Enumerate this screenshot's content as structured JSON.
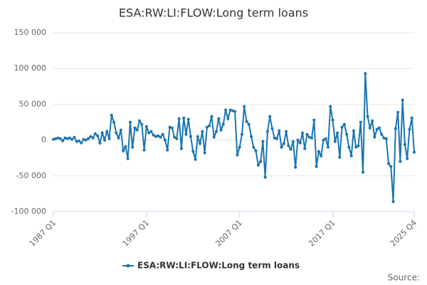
{
  "chart_data": {
    "type": "line",
    "title": "ESA:RW:LI:FLOW:Long term loans",
    "source": "Source:",
    "categories": [
      "1987 Q1",
      null,
      null,
      null,
      null,
      null,
      null,
      null,
      null,
      null,
      null,
      null,
      null,
      null,
      null,
      null,
      null,
      null,
      null,
      null,
      null,
      null,
      null,
      null,
      null,
      null,
      null,
      null,
      null,
      null,
      null,
      null,
      null,
      null,
      null,
      null,
      null,
      null,
      null,
      null,
      "1997 Q1",
      null,
      null,
      null,
      null,
      null,
      null,
      null,
      null,
      null,
      null,
      null,
      null,
      null,
      null,
      null,
      null,
      null,
      null,
      null,
      null,
      null,
      null,
      null,
      null,
      null,
      null,
      null,
      null,
      null,
      null,
      null,
      null,
      null,
      null,
      null,
      null,
      null,
      null,
      null,
      "2007 Q1",
      null,
      null,
      null,
      null,
      null,
      null,
      null,
      null,
      null,
      null,
      null,
      null,
      null,
      null,
      null,
      null,
      null,
      null,
      null,
      null,
      null,
      null,
      null,
      null,
      null,
      null,
      null,
      null,
      null,
      null,
      null,
      null,
      null,
      null,
      null,
      null,
      null,
      null,
      null,
      "2017 Q1",
      null,
      null,
      null,
      null,
      null,
      null,
      null,
      null,
      null,
      null,
      null,
      null,
      null,
      null,
      null,
      null,
      null,
      null,
      null,
      null,
      null,
      null,
      null,
      null,
      null,
      null,
      null,
      null,
      null,
      null,
      null,
      null,
      null,
      null,
      "2025 Q4"
    ],
    "series": [
      {
        "name": "ESA:RW:LI:FLOW:Long term loans",
        "color": "#1a75b0",
        "values": [
          1000,
          2000,
          3000,
          2000,
          -1000,
          3000,
          2000,
          3000,
          1000,
          4000,
          -2000,
          -1000,
          -4000,
          1000,
          0,
          2000,
          5000,
          3000,
          9000,
          6000,
          -4000,
          10000,
          0,
          12000,
          2000,
          35000,
          25000,
          10000,
          3000,
          14000,
          -15000,
          -9000,
          -26000,
          25000,
          -10000,
          17000,
          14000,
          27000,
          22000,
          -14000,
          19000,
          10000,
          12000,
          7000,
          5000,
          6000,
          4000,
          8000,
          0,
          -14000,
          18000,
          17000,
          4000,
          2000,
          30000,
          -12000,
          31000,
          8000,
          29000,
          5000,
          -16000,
          -27000,
          5000,
          -5000,
          12000,
          -18000,
          18000,
          20000,
          33000,
          4000,
          12000,
          30000,
          14000,
          22000,
          42000,
          30000,
          42000,
          41000,
          40000,
          -21000,
          -10000,
          8000,
          47000,
          26000,
          22000,
          5000,
          -10000,
          -15000,
          -35000,
          -30000,
          -2000,
          -52000,
          12000,
          33000,
          16000,
          3000,
          2000,
          13000,
          -10000,
          -5000,
          12000,
          -8000,
          -13000,
          -2000,
          -38000,
          0,
          -4000,
          10000,
          -12000,
          8000,
          4000,
          3000,
          28000,
          -37000,
          -16000,
          -22000,
          0,
          2000,
          -10000,
          47000,
          28000,
          -2000,
          10000,
          -24000,
          18000,
          22000,
          8000,
          -10000,
          -22000,
          13000,
          -10000,
          -8000,
          25000,
          -45000,
          93000,
          33000,
          17000,
          27000,
          4000,
          15000,
          17000,
          8000,
          3000,
          2000,
          -33000,
          -37000,
          -86000,
          16000,
          39000,
          -30000,
          56000,
          -6000,
          -26000,
          15000,
          31000,
          -17000
        ]
      }
    ],
    "ylim": [
      -100000,
      150000
    ],
    "yticks": [
      {
        "value": -100000,
        "label": "-100 000"
      },
      {
        "value": -50000,
        "label": "-50 000"
      },
      0,
      {
        "value": 50000,
        "label": "50 000"
      },
      {
        "value": 100000,
        "label": "100 000"
      },
      {
        "value": 150000,
        "label": "150 000"
      }
    ],
    "grid": true
  }
}
